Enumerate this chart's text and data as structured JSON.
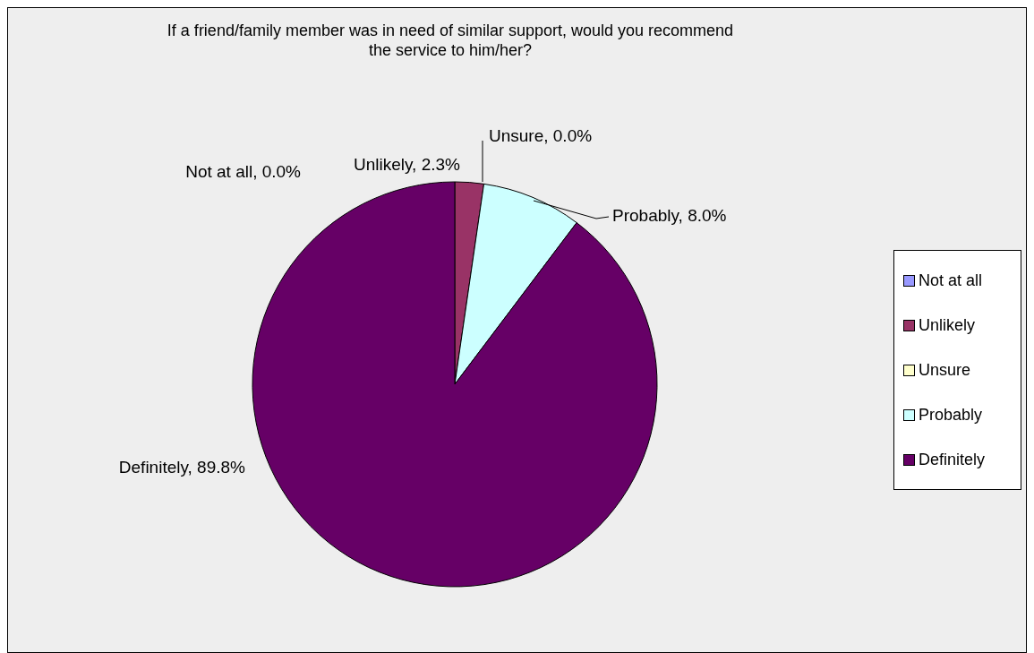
{
  "chart_data": {
    "type": "pie",
    "title": "If a friend/family member was in need of similar support, would you recommend the service to him/her?",
    "categories": [
      "Not at all",
      "Unlikely",
      "Unsure",
      "Probably",
      "Definitely"
    ],
    "values": [
      0.0,
      2.3,
      0.0,
      8.0,
      89.8
    ],
    "colors": [
      "#9999ff",
      "#993366",
      "#ffffcc",
      "#ccffff",
      "#660066"
    ],
    "value_labels": [
      "Not at all, 0.0%",
      "Unlikely, 2.3%",
      "Unsure, 0.0%",
      "Probably, 8.0%",
      "Definitely, 89.8%"
    ],
    "legend": "right"
  }
}
